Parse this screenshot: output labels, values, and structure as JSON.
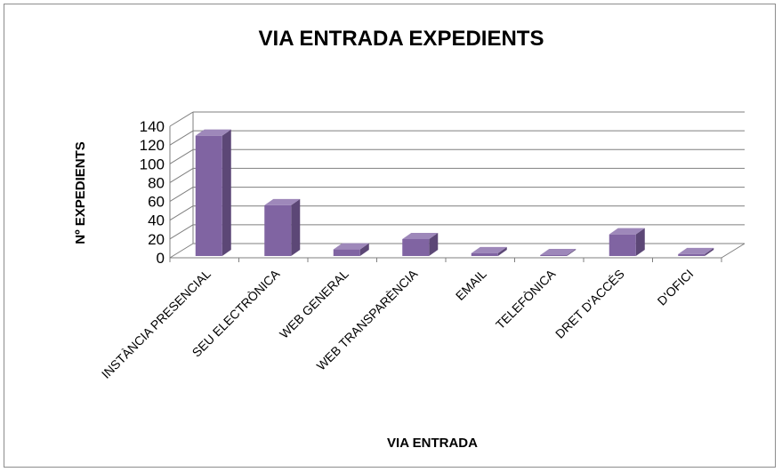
{
  "chart_data": {
    "type": "bar",
    "title": "VIA ENTRADA EXPEDIENTS",
    "xlabel": "VIA ENTRADA",
    "ylabel": "Nº EXPEDIENTS",
    "categories": [
      "INSTÀNCIA PRESENCIAL",
      "SEU ELECTRÒNICA",
      "WEB GENERAL",
      "WEB TRANSPARÈNCIA",
      "EMAIL",
      "TELEFÒNICA",
      "DRET D'ACCÉS",
      "D'OFICI"
    ],
    "values": [
      128,
      54,
      7,
      18,
      3,
      1,
      23,
      2
    ],
    "ylim": [
      0,
      140
    ],
    "yticks": [
      "0",
      "20",
      "40",
      "60",
      "80",
      "100",
      "120",
      "140"
    ],
    "grid": true,
    "legend": "none",
    "style": "3d-column",
    "colors": {
      "bar_front": "#8064a2",
      "bar_side": "#5c4776",
      "bar_top": "#9e88ba",
      "grid": "#7f7f7f"
    }
  }
}
